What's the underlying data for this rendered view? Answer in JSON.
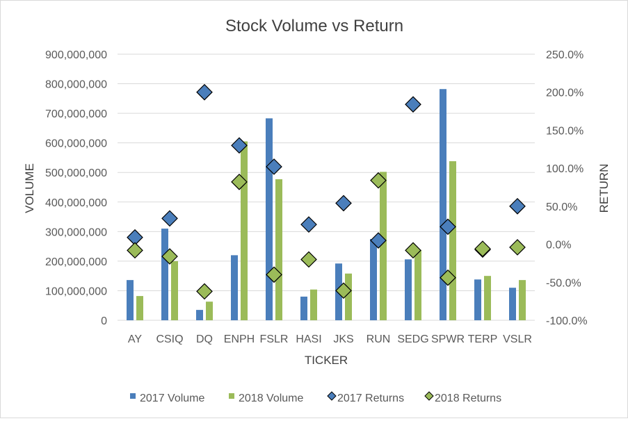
{
  "chart_data": {
    "type": "bar",
    "title": "Stock Volume vs Return",
    "xlabel": "TICKER",
    "ylabel": "VOLUME",
    "y2label": "RETURN",
    "categories": [
      "AY",
      "CSIQ",
      "DQ",
      "ENPH",
      "FSLR",
      "HASI",
      "JKS",
      "RUN",
      "SEDG",
      "SPWR",
      "TERP",
      "VSLR"
    ],
    "ylim": [
      0,
      900000000
    ],
    "y_ticks": [
      0,
      100000000,
      200000000,
      300000000,
      400000000,
      500000000,
      600000000,
      700000000,
      800000000,
      900000000
    ],
    "y_tick_labels": [
      "0",
      "100,000,000",
      "200,000,000",
      "300,000,000",
      "400,000,000",
      "500,000,000",
      "600,000,000",
      "700,000,000",
      "800,000,000",
      "900,000,000"
    ],
    "y2lim": [
      -1.0,
      2.5
    ],
    "y2_ticks": [
      -1.0,
      -0.5,
      0,
      0.5,
      1.0,
      1.5,
      2.0,
      2.5
    ],
    "y2_tick_labels": [
      "-100.0%",
      "-50.0%",
      "0.0%",
      "50.0%",
      "100.0%",
      "150.0%",
      "200.0%",
      "250.0%"
    ],
    "grid": true,
    "legend_position": "bottom",
    "bar_series": [
      {
        "name": "2017 Volume",
        "color": "#4a7ebb",
        "values": [
          136000000,
          310000000,
          35000000,
          220000000,
          683000000,
          80000000,
          192000000,
          275000000,
          206000000,
          782000000,
          138000000,
          110000000
        ]
      },
      {
        "name": "2018 Volume",
        "color": "#9bbb59",
        "values": [
          82000000,
          200000000,
          63000000,
          605000000,
          477000000,
          104000000,
          158000000,
          502000000,
          238000000,
          538000000,
          150000000,
          136000000
        ]
      }
    ],
    "marker_series": [
      {
        "name": "2017 Returns",
        "color": "#4a7ebb",
        "axis": "right",
        "values": [
          0.09,
          0.34,
          2.0,
          1.3,
          1.02,
          0.26,
          0.54,
          0.05,
          1.84,
          0.23,
          -0.07,
          0.5
        ]
      },
      {
        "name": "2018 Returns",
        "color": "#9bbb59",
        "axis": "right",
        "values": [
          -0.08,
          -0.16,
          -0.62,
          0.82,
          -0.4,
          -0.2,
          -0.61,
          0.84,
          -0.08,
          -0.44,
          -0.06,
          -0.04
        ]
      }
    ]
  }
}
